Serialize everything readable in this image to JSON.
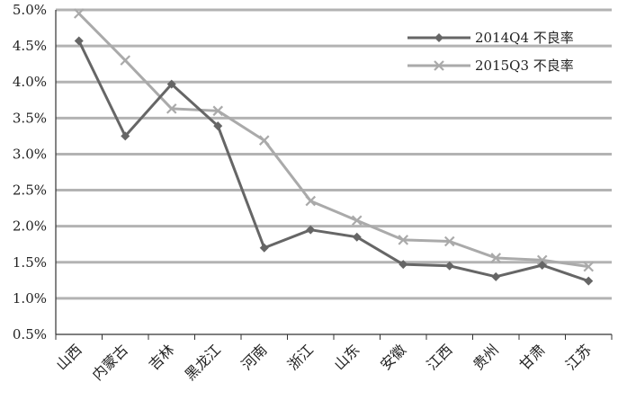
{
  "chart_data": {
    "type": "line",
    "title": "",
    "xlabel": "",
    "ylabel": "",
    "categories": [
      "山西",
      "内蒙古",
      "吉林",
      "黑龙江",
      "河南",
      "浙江",
      "山东",
      "安徽",
      "江西",
      "贵州",
      "甘肃",
      "江苏"
    ],
    "ylim": [
      0.5,
      5.0
    ],
    "yticks": [
      "0.5%",
      "1.0%",
      "1.5%",
      "2.0%",
      "2.5%",
      "3.0%",
      "3.5%",
      "4.0%",
      "4.5%",
      "5.0%"
    ],
    "grid": true,
    "legend": "top-right",
    "series": [
      {
        "name": "2014Q4 不良率",
        "color": "#666666",
        "marker": "diamond",
        "values": [
          4.57,
          3.25,
          3.97,
          3.39,
          1.7,
          1.95,
          1.85,
          1.47,
          1.45,
          1.3,
          1.46,
          1.24
        ]
      },
      {
        "name": "2015Q3 不良率",
        "color": "#aaaaaa",
        "marker": "x",
        "values": [
          4.95,
          4.3,
          3.63,
          3.6,
          3.19,
          2.35,
          2.08,
          1.81,
          1.79,
          1.56,
          1.53,
          1.44
        ]
      }
    ]
  }
}
